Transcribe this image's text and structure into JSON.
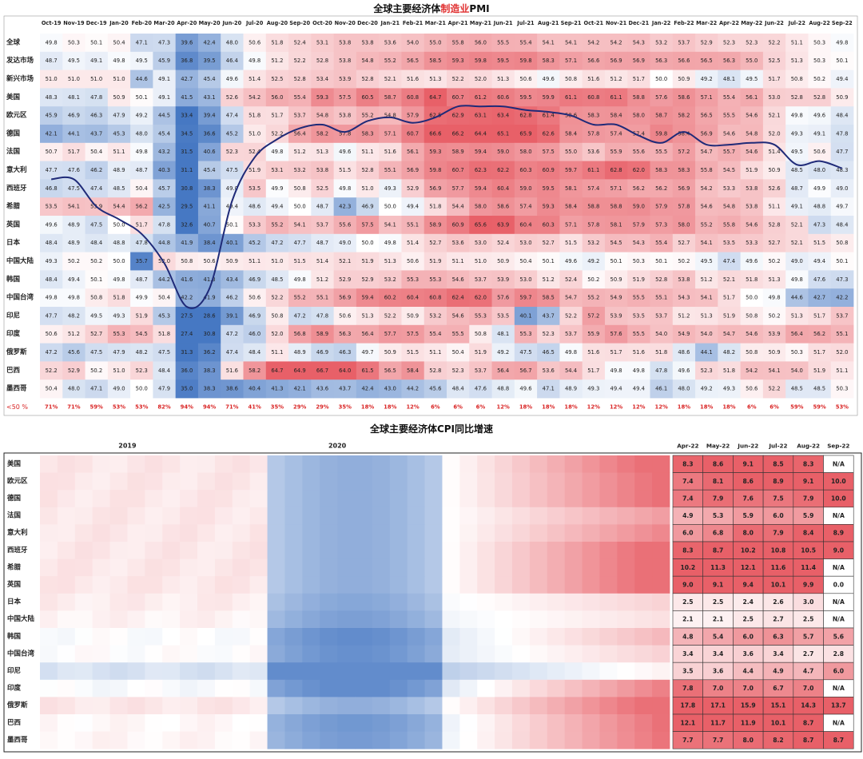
{
  "pmi": {
    "title_pre": "全球主要经济体",
    "title_mid": "制造业",
    "title_post": "PMI",
    "highlight_color": "#e03030",
    "footer_label": "<50 %",
    "months": [
      "Oct-19",
      "Nov-19",
      "Dec-19",
      "Jan-20",
      "Feb-20",
      "Mar-20",
      "Apr-20",
      "May-20",
      "Jun-20",
      "Jul-20",
      "Aug-20",
      "Sep-20",
      "Oct-20",
      "Nov-20",
      "Dec-20",
      "Jan-21",
      "Feb-21",
      "Mar-21",
      "Apr-21",
      "May-21",
      "Jun-21",
      "Jul-21",
      "Aug-21",
      "Sep-21",
      "Oct-21",
      "Nov-21",
      "Dec-21",
      "Jan-22",
      "Feb-22",
      "Mar-22",
      "Apr-22",
      "May-22",
      "Jun-22",
      "Jul-22",
      "Aug-22",
      "Sep-22"
    ],
    "rows": [
      {
        "name": "全球",
        "values": [
          49.8,
          50.3,
          50.1,
          50.4,
          47.1,
          47.3,
          39.6,
          42.4,
          48.0,
          50.6,
          51.8,
          52.4,
          53.1,
          53.8,
          53.8,
          53.6,
          54.0,
          55.0,
          55.8,
          56.0,
          55.5,
          55.4,
          54.1,
          54.1,
          54.2,
          54.2,
          54.3,
          53.2,
          53.7,
          52.9,
          52.3,
          52.3,
          52.2,
          51.1,
          50.3,
          49.8
        ]
      },
      {
        "name": "发达市场",
        "values": [
          48.7,
          49.5,
          49.1,
          49.8,
          49.5,
          45.9,
          36.8,
          39.5,
          46.4,
          49.8,
          51.2,
          52.2,
          52.8,
          53.8,
          54.8,
          55.2,
          56.5,
          58.5,
          59.3,
          59.8,
          59.5,
          59.8,
          58.3,
          57.1,
          56.6,
          56.9,
          56.9,
          56.3,
          56.6,
          56.5,
          56.3,
          55.0,
          52.5,
          51.3,
          50.3,
          50.1
        ]
      },
      {
        "name": "新兴市场",
        "values": [
          51.0,
          51.0,
          51.0,
          51.0,
          44.6,
          49.1,
          42.7,
          45.4,
          49.6,
          51.4,
          52.5,
          52.8,
          53.4,
          53.9,
          52.8,
          52.1,
          51.6,
          51.3,
          52.2,
          52.0,
          51.3,
          50.6,
          49.6,
          50.8,
          51.6,
          51.2,
          51.7,
          50.0,
          50.9,
          49.2,
          48.1,
          49.5,
          51.7,
          50.8,
          50.2,
          49.4
        ]
      },
      {
        "name": "美国",
        "values": [
          48.3,
          48.1,
          47.8,
          50.9,
          50.1,
          49.1,
          41.5,
          43.1,
          52.6,
          54.2,
          56.0,
          55.4,
          59.3,
          57.5,
          60.5,
          58.7,
          60.8,
          64.7,
          60.7,
          61.2,
          60.6,
          59.5,
          59.9,
          61.1,
          60.8,
          61.1,
          58.8,
          57.6,
          58.6,
          57.1,
          55.4,
          56.1,
          53.0,
          52.8,
          52.8,
          50.9
        ]
      },
      {
        "name": "欧元区",
        "values": [
          45.9,
          46.9,
          46.3,
          47.9,
          49.2,
          44.5,
          33.4,
          39.4,
          47.4,
          51.8,
          51.7,
          53.7,
          54.8,
          53.8,
          55.2,
          54.8,
          57.9,
          62.5,
          62.9,
          63.1,
          63.4,
          62.8,
          61.4,
          58.6,
          58.3,
          58.4,
          58.0,
          58.7,
          58.2,
          56.5,
          55.5,
          54.6,
          52.1,
          49.8,
          49.6,
          48.4
        ]
      },
      {
        "name": "德国",
        "values": [
          42.1,
          44.1,
          43.7,
          45.3,
          48.0,
          45.4,
          34.5,
          36.6,
          45.2,
          51.0,
          52.2,
          56.4,
          58.2,
          57.8,
          58.3,
          57.1,
          60.7,
          66.6,
          66.2,
          64.4,
          65.1,
          65.9,
          62.6,
          58.4,
          57.8,
          57.4,
          57.4,
          59.8,
          58.4,
          56.9,
          54.6,
          54.8,
          52.0,
          49.3,
          49.1,
          47.8
        ]
      },
      {
        "name": "法国",
        "values": [
          50.7,
          51.7,
          50.4,
          51.1,
          49.8,
          43.2,
          31.5,
          40.6,
          52.3,
          52.4,
          49.8,
          51.2,
          51.3,
          49.6,
          51.1,
          51.6,
          56.1,
          59.3,
          58.9,
          59.4,
          59.0,
          58.0,
          57.5,
          55.0,
          53.6,
          55.9,
          55.6,
          55.5,
          57.2,
          54.7,
          55.7,
          54.6,
          51.4,
          49.5,
          50.6,
          47.7
        ]
      },
      {
        "name": "意大利",
        "values": [
          47.7,
          47.6,
          46.2,
          48.9,
          48.7,
          40.3,
          31.1,
          45.4,
          47.5,
          51.9,
          53.1,
          53.2,
          53.8,
          51.5,
          52.8,
          55.1,
          56.9,
          59.8,
          60.7,
          62.3,
          62.2,
          60.3,
          60.9,
          59.7,
          61.1,
          62.8,
          62.0,
          58.3,
          58.3,
          55.8,
          54.5,
          51.9,
          50.9,
          48.5,
          48.0,
          48.3
        ]
      },
      {
        "name": "西班牙",
        "values": [
          46.8,
          47.5,
          47.4,
          48.5,
          50.4,
          45.7,
          30.8,
          38.3,
          49.0,
          53.5,
          49.9,
          50.8,
          52.5,
          49.8,
          51.0,
          49.3,
          52.9,
          56.9,
          57.7,
          59.4,
          60.4,
          59.0,
          59.5,
          58.1,
          57.4,
          57.1,
          56.2,
          56.2,
          56.9,
          54.2,
          53.3,
          53.8,
          52.6,
          48.7,
          49.9,
          49.0
        ]
      },
      {
        "name": "希腊",
        "values": [
          53.5,
          54.1,
          53.9,
          54.4,
          56.2,
          42.5,
          29.5,
          41.1,
          49.4,
          48.6,
          49.4,
          50.0,
          48.7,
          42.3,
          46.9,
          50.0,
          49.4,
          51.8,
          54.4,
          58.0,
          58.6,
          57.4,
          59.3,
          58.4,
          58.8,
          58.8,
          59.0,
          57.9,
          57.8,
          54.6,
          54.8,
          53.8,
          51.1,
          49.1,
          48.8,
          49.7
        ]
      },
      {
        "name": "英国",
        "values": [
          49.6,
          48.9,
          47.5,
          50.0,
          51.7,
          47.8,
          32.6,
          40.7,
          50.1,
          53.3,
          55.2,
          54.1,
          53.7,
          55.6,
          57.5,
          54.1,
          55.1,
          58.9,
          60.9,
          65.6,
          63.9,
          60.4,
          60.3,
          57.1,
          57.8,
          58.1,
          57.9,
          57.3,
          58.0,
          55.2,
          55.8,
          54.6,
          52.8,
          52.1,
          47.3,
          48.4
        ]
      },
      {
        "name": "日本",
        "values": [
          48.4,
          48.9,
          48.4,
          48.8,
          47.8,
          44.8,
          41.9,
          38.4,
          40.1,
          45.2,
          47.2,
          47.7,
          48.7,
          49.0,
          50.0,
          49.8,
          51.4,
          52.7,
          53.6,
          53.0,
          52.4,
          53.0,
          52.7,
          51.5,
          53.2,
          54.5,
          54.3,
          55.4,
          52.7,
          54.1,
          53.5,
          53.3,
          52.7,
          52.1,
          51.5,
          50.8
        ]
      },
      {
        "name": "中国大陆",
        "values": [
          49.3,
          50.2,
          50.2,
          50.0,
          35.7,
          52.0,
          50.8,
          50.6,
          50.9,
          51.1,
          51.0,
          51.5,
          51.4,
          52.1,
          51.9,
          51.3,
          50.6,
          51.9,
          51.1,
          51.0,
          50.9,
          50.4,
          50.1,
          49.6,
          49.2,
          50.1,
          50.3,
          50.1,
          50.2,
          49.5,
          47.4,
          49.6,
          50.2,
          49.0,
          49.4,
          50.1
        ]
      },
      {
        "name": "韩国",
        "values": [
          48.4,
          49.4,
          50.1,
          49.8,
          48.7,
          44.2,
          41.6,
          41.3,
          43.4,
          46.9,
          48.5,
          49.8,
          51.2,
          52.9,
          52.9,
          53.2,
          55.3,
          55.3,
          54.6,
          53.7,
          53.9,
          53.0,
          51.2,
          52.4,
          50.2,
          50.9,
          51.9,
          52.8,
          53.8,
          51.2,
          52.1,
          51.8,
          51.3,
          49.8,
          47.6,
          47.3
        ]
      },
      {
        "name": "中国台湾",
        "values": [
          49.8,
          49.8,
          50.8,
          51.8,
          49.9,
          50.4,
          42.2,
          41.9,
          46.2,
          50.6,
          52.2,
          55.2,
          55.1,
          56.9,
          59.4,
          60.2,
          60.4,
          60.8,
          62.4,
          62.0,
          57.6,
          59.7,
          58.5,
          54.7,
          55.2,
          54.9,
          55.5,
          55.1,
          54.3,
          54.1,
          51.7,
          50.0,
          49.8,
          44.6,
          42.7,
          42.2
        ]
      },
      {
        "name": "印尼",
        "values": [
          47.7,
          48.2,
          49.5,
          49.3,
          51.9,
          45.3,
          27.5,
          28.6,
          39.1,
          46.9,
          50.8,
          47.2,
          47.8,
          50.6,
          51.3,
          52.2,
          50.9,
          53.2,
          54.6,
          55.3,
          53.5,
          40.1,
          43.7,
          52.2,
          57.2,
          53.9,
          53.5,
          53.7,
          51.2,
          51.3,
          51.9,
          50.8,
          50.2,
          51.3,
          51.7,
          53.7
        ]
      },
      {
        "name": "印度",
        "values": [
          50.6,
          51.2,
          52.7,
          55.3,
          54.5,
          51.8,
          27.4,
          30.8,
          47.2,
          46.0,
          52.0,
          56.8,
          58.9,
          56.3,
          56.4,
          57.7,
          57.5,
          55.4,
          55.5,
          50.8,
          48.1,
          55.3,
          52.3,
          53.7,
          55.9,
          57.6,
          55.5,
          54.0,
          54.9,
          54.0,
          54.7,
          54.6,
          53.9,
          56.4,
          56.2,
          55.1
        ]
      },
      {
        "name": "俄罗斯",
        "values": [
          47.2,
          45.6,
          47.5,
          47.9,
          48.2,
          47.5,
          31.3,
          36.2,
          47.4,
          48.4,
          51.1,
          48.9,
          46.9,
          46.3,
          49.7,
          50.9,
          51.5,
          51.1,
          50.4,
          51.9,
          49.2,
          47.5,
          46.5,
          49.8,
          51.6,
          51.7,
          51.6,
          51.8,
          48.6,
          44.1,
          48.2,
          50.8,
          50.9,
          50.3,
          51.7,
          52.0
        ]
      },
      {
        "name": "巴西",
        "values": [
          52.2,
          52.9,
          50.2,
          51.0,
          52.3,
          48.4,
          36.0,
          38.3,
          51.6,
          58.2,
          64.7,
          64.9,
          66.7,
          64.0,
          61.5,
          56.5,
          58.4,
          52.8,
          52.3,
          53.7,
          56.4,
          56.7,
          53.6,
          54.4,
          51.7,
          49.8,
          49.8,
          47.8,
          49.6,
          52.3,
          51.8,
          54.2,
          54.1,
          54.0,
          51.9,
          51.1
        ]
      },
      {
        "name": "墨西哥",
        "values": [
          50.4,
          48.0,
          47.1,
          49.0,
          50.0,
          47.9,
          35.0,
          38.3,
          38.6,
          40.4,
          41.3,
          42.1,
          43.6,
          43.7,
          42.4,
          43.0,
          44.2,
          45.6,
          48.4,
          47.6,
          48.8,
          49.6,
          47.1,
          48.9,
          49.3,
          49.4,
          49.4,
          46.1,
          48.0,
          49.2,
          49.3,
          50.6,
          52.2,
          48.5,
          48.5,
          50.3
        ]
      }
    ],
    "footer": [
      "71%",
      "71%",
      "59%",
      "53%",
      "53%",
      "82%",
      "94%",
      "94%",
      "71%",
      "41%",
      "35%",
      "29%",
      "29%",
      "35%",
      "18%",
      "18%",
      "12%",
      "6%",
      "6%",
      "6%",
      "12%",
      "18%",
      "18%",
      "18%",
      "12%",
      "12%",
      "12%",
      "12%",
      "18%",
      "18%",
      "18%",
      "6%",
      "6%",
      "59%",
      "59%",
      "53%"
    ],
    "overlay_line": {
      "note": "Curve drawn over the heatmap, tracing the share of economies with PMI below 50 (footer row).",
      "row_position": [
        8.0,
        8.0,
        9.5,
        10.2,
        11.0,
        12.6,
        15.0,
        14.0,
        9.2,
        6.8,
        5.8,
        5.2,
        5.0,
        5.4,
        4.8,
        4.6,
        4.9,
        4.6,
        4.0,
        4.0,
        4.0,
        4.2,
        4.3,
        4.5,
        5.0,
        5.0,
        5.6,
        6.0,
        5.4,
        6.1,
        6.1,
        6.0,
        6.1,
        7.2,
        7.0,
        7.4
      ]
    }
  },
  "cpi": {
    "title": "全球主要经济体CPI同比增速",
    "year_labels": [
      {
        "label": "2019",
        "col": 5
      },
      {
        "label": "2020",
        "col": 17
      }
    ],
    "countries": [
      "美国",
      "欧元区",
      "德国",
      "法国",
      "意大利",
      "西班牙",
      "希腊",
      "英国",
      "日本",
      "中国大陆",
      "韩国",
      "中国台湾",
      "印尼",
      "印度",
      "俄罗斯",
      "巴西",
      "墨西哥"
    ],
    "heatmap_cols": 36,
    "table_months": [
      "Apr-22",
      "May-22",
      "Jun-22",
      "Jul-22",
      "Aug-22",
      "Sep-22"
    ],
    "table_values": [
      [
        "8.3",
        "8.6",
        "9.1",
        "8.5",
        "8.3",
        "N/A"
      ],
      [
        "7.4",
        "8.1",
        "8.6",
        "8.9",
        "9.1",
        "10.0"
      ],
      [
        "7.4",
        "7.9",
        "7.6",
        "7.5",
        "7.9",
        "10.0"
      ],
      [
        "4.9",
        "5.3",
        "5.9",
        "6.0",
        "5.9",
        "N/A"
      ],
      [
        "6.0",
        "6.8",
        "8.0",
        "7.9",
        "8.4",
        "8.9"
      ],
      [
        "8.3",
        "8.7",
        "10.2",
        "10.8",
        "10.5",
        "9.0"
      ],
      [
        "10.2",
        "11.3",
        "12.1",
        "11.6",
        "11.4",
        "N/A"
      ],
      [
        "9.0",
        "9.1",
        "9.4",
        "10.1",
        "9.9",
        "0.0"
      ],
      [
        "2.5",
        "2.5",
        "2.4",
        "2.6",
        "3.0",
        "N/A"
      ],
      [
        "2.1",
        "2.1",
        "2.5",
        "2.7",
        "2.5",
        "N/A"
      ],
      [
        "4.8",
        "5.4",
        "6.0",
        "6.3",
        "5.7",
        "5.6"
      ],
      [
        "3.4",
        "3.4",
        "3.6",
        "3.4",
        "2.7",
        "2.8"
      ],
      [
        "3.5",
        "3.6",
        "4.4",
        "4.9",
        "4.7",
        "6.0"
      ],
      [
        "7.8",
        "7.0",
        "7.0",
        "6.7",
        "7.0",
        "N/A"
      ],
      [
        "17.8",
        "17.1",
        "15.9",
        "15.1",
        "14.3",
        "13.7"
      ],
      [
        "12.1",
        "11.7",
        "11.9",
        "10.1",
        "8.7",
        "N/A"
      ],
      [
        "7.7",
        "7.7",
        "8.0",
        "8.2",
        "8.7",
        "8.7"
      ]
    ]
  }
}
